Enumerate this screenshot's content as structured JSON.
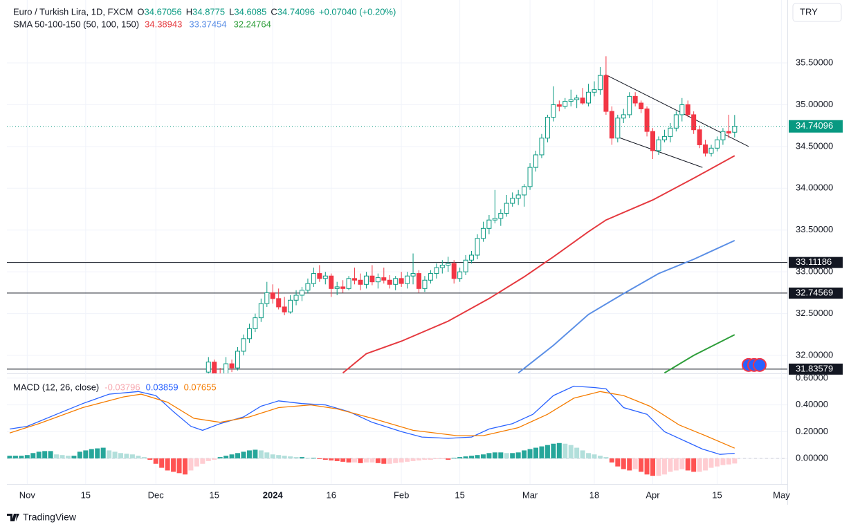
{
  "chart_data": [
    {
      "type": "candlestick",
      "title": "Euro / Turkish Lira, 1D, FXCM",
      "ohlc_labels": [
        "O",
        "H",
        "L",
        "C"
      ],
      "change": "+0.07040 (+0.20%)",
      "indicator_label": "SMA 50-100-150 (50, 100, 150)",
      "currency": "TRY",
      "colors": {
        "up": "#089981",
        "down": "#f23645",
        "level": "#131722",
        "trendline": "#131722"
      },
      "x": [
        34,
        35,
        36,
        37,
        38,
        39,
        40,
        41,
        42,
        43,
        44,
        45,
        46,
        47,
        48,
        49,
        50,
        51,
        52,
        53,
        54,
        55,
        56,
        57,
        58,
        59,
        60,
        61,
        62,
        63,
        64,
        65,
        66,
        67,
        68,
        69,
        70,
        71,
        72,
        73,
        74,
        75,
        76,
        77,
        78,
        79,
        80,
        81,
        82,
        83,
        84,
        85,
        86,
        87,
        88,
        89,
        90,
        91,
        92,
        93,
        94,
        95,
        96,
        97,
        98,
        99,
        100,
        101,
        102,
        103,
        104,
        105,
        106,
        107,
        108,
        109,
        110,
        111,
        112,
        113,
        114,
        115,
        116,
        117,
        118,
        119,
        120,
        121,
        122,
        123,
        124
      ],
      "open": [
        31.8,
        31.92,
        31.78,
        31.72,
        31.9,
        31.85,
        32.05,
        32.2,
        32.32,
        32.45,
        32.62,
        32.75,
        32.68,
        32.58,
        32.52,
        32.66,
        32.72,
        32.78,
        32.86,
        32.98,
        32.92,
        32.95,
        32.8,
        32.82,
        32.8,
        32.92,
        32.9,
        32.85,
        32.95,
        32.88,
        32.93,
        32.9,
        32.85,
        32.92,
        32.86,
        32.95,
        32.98,
        32.8,
        32.9,
        32.98,
        33.05,
        33.08,
        33.1,
        32.92,
        33.0,
        33.14,
        33.2,
        33.4,
        33.52,
        33.62,
        33.64,
        33.7,
        33.82,
        33.88,
        33.92,
        34.02,
        34.25,
        34.4,
        34.6,
        34.85,
        35.0,
        34.98,
        35.04,
        35.06,
        35.08,
        35.02,
        35.15,
        35.18,
        35.35,
        34.92,
        34.6,
        34.84,
        34.88,
        35.1,
        35.02,
        34.95,
        34.68,
        34.45,
        34.58,
        34.62,
        34.72,
        34.88,
        35.0,
        34.88,
        34.7,
        34.52,
        34.42,
        34.48,
        34.58,
        34.68,
        34.67056
      ],
      "high": [
        31.98,
        31.95,
        31.85,
        31.98,
        31.95,
        32.1,
        32.25,
        32.38,
        32.5,
        32.68,
        32.88,
        32.85,
        32.8,
        32.7,
        32.72,
        32.78,
        32.82,
        32.92,
        33.05,
        33.08,
        33.0,
        32.98,
        32.88,
        32.9,
        32.95,
        33.05,
        32.98,
        33.0,
        33.08,
        32.98,
        33.05,
        32.96,
        32.95,
        33.0,
        33.0,
        33.22,
        33.02,
        32.95,
        33.02,
        33.1,
        33.14,
        33.18,
        33.14,
        33.05,
        33.2,
        33.25,
        33.45,
        33.6,
        33.68,
        33.98,
        33.75,
        33.92,
        33.95,
        33.98,
        34.05,
        34.3,
        34.45,
        34.65,
        34.88,
        35.22,
        35.05,
        35.08,
        35.18,
        35.12,
        35.2,
        35.25,
        35.28,
        35.45,
        35.58,
        34.98,
        34.88,
        34.95,
        35.15,
        35.15,
        35.05,
        34.98,
        34.72,
        34.62,
        34.7,
        34.78,
        34.92,
        35.08,
        35.05,
        34.92,
        34.75,
        34.58,
        34.52,
        34.62,
        34.72,
        34.88,
        34.8775
      ],
      "low": [
        31.75,
        31.7,
        31.65,
        31.7,
        31.8,
        31.82,
        32.0,
        32.15,
        32.28,
        32.4,
        32.58,
        32.62,
        32.55,
        32.48,
        32.5,
        32.6,
        32.65,
        32.74,
        32.82,
        32.88,
        32.85,
        32.7,
        32.72,
        32.75,
        32.78,
        32.85,
        32.78,
        32.8,
        32.84,
        32.8,
        32.86,
        32.8,
        32.78,
        32.82,
        32.8,
        32.85,
        32.75,
        32.76,
        32.86,
        32.92,
        32.98,
        33.0,
        32.86,
        32.88,
        32.96,
        33.1,
        33.15,
        33.36,
        33.45,
        33.58,
        33.55,
        33.66,
        33.78,
        33.8,
        33.78,
        33.98,
        34.2,
        34.36,
        34.55,
        34.8,
        34.92,
        34.95,
        34.98,
        34.96,
        35.0,
        34.98,
        35.1,
        35.12,
        34.88,
        34.52,
        34.55,
        34.78,
        34.84,
        34.98,
        34.9,
        34.62,
        34.35,
        34.4,
        34.55,
        34.55,
        34.68,
        34.8,
        34.85,
        34.65,
        34.48,
        34.38,
        34.38,
        34.44,
        34.52,
        34.6,
        34.6085
      ],
      "close": [
        31.92,
        31.78,
        31.72,
        31.9,
        31.85,
        32.05,
        32.2,
        32.32,
        32.45,
        32.62,
        32.75,
        32.68,
        32.58,
        32.52,
        32.66,
        32.72,
        32.78,
        32.86,
        32.98,
        32.92,
        32.95,
        32.8,
        32.82,
        32.8,
        32.92,
        32.9,
        32.85,
        32.95,
        32.88,
        32.93,
        32.9,
        32.85,
        32.92,
        32.86,
        32.95,
        32.98,
        32.8,
        32.9,
        32.98,
        33.05,
        33.08,
        33.1,
        32.92,
        33.0,
        33.14,
        33.2,
        33.4,
        33.52,
        33.62,
        33.64,
        33.7,
        33.82,
        33.88,
        33.92,
        34.02,
        34.25,
        34.4,
        34.6,
        34.85,
        35.0,
        34.98,
        35.04,
        35.06,
        35.08,
        35.02,
        35.15,
        35.18,
        35.35,
        34.92,
        34.6,
        34.84,
        34.88,
        35.1,
        35.02,
        34.95,
        34.68,
        34.45,
        34.58,
        34.62,
        34.72,
        34.88,
        35.0,
        34.88,
        34.7,
        34.52,
        34.42,
        34.48,
        34.58,
        34.68,
        34.66,
        34.74096
      ],
      "series": [
        {
          "color": "#e5393f",
          "x": [
            57,
            61,
            67,
            75,
            82,
            88,
            93,
            99,
            102,
            110,
            117,
            124
          ],
          "values": [
            31.79,
            32.02,
            32.17,
            32.41,
            32.68,
            32.94,
            33.18,
            33.48,
            33.62,
            33.86,
            34.12,
            34.38943
          ]
        },
        {
          "color": "#5b8fe6",
          "x": [
            87,
            93,
            99,
            105,
            111,
            117,
            124
          ],
          "values": [
            31.79,
            32.12,
            32.49,
            32.74,
            32.98,
            33.15,
            33.37454
          ]
        },
        {
          "color": "#2e9e3a",
          "x": [
            112,
            117,
            124
          ],
          "values": [
            31.79,
            32.0,
            32.24764
          ]
        }
      ],
      "levels": [
        33.11186,
        32.74569,
        31.83579
      ],
      "trendlines": [
        {
          "x": [
            101.9,
            126.4
          ],
          "values": [
            35.36,
            34.5
          ]
        },
        {
          "x": [
            103.7,
            118.5
          ],
          "values": [
            34.62,
            34.25
          ]
        }
      ],
      "xlim": [
        -0.47,
        132.66
      ],
      "ylim": [
        31.785,
        36.253
      ],
      "yticks": [
        {
          "value": 35.5,
          "label": "35.50000"
        },
        {
          "value": 35,
          "label": "35.00000"
        },
        {
          "value": 34.5,
          "label": "34.50000"
        },
        {
          "value": 34,
          "label": "34.00000"
        },
        {
          "value": 33.5,
          "label": "33.50000"
        },
        {
          "value": 33,
          "label": "33.00000"
        },
        {
          "value": 32.5,
          "label": "32.50000"
        },
        {
          "value": 32,
          "label": "32.00000"
        }
      ],
      "xticks": [
        {
          "value": 3,
          "label": "Nov"
        },
        {
          "value": 13,
          "label": "15"
        },
        {
          "value": 25,
          "label": "Dec"
        },
        {
          "value": 35,
          "label": "15"
        },
        {
          "value": 45,
          "label": "2024"
        },
        {
          "value": 55,
          "label": "16"
        },
        {
          "value": 67,
          "label": "Feb"
        },
        {
          "value": 77,
          "label": "15"
        },
        {
          "value": 89,
          "label": "Mar"
        },
        {
          "value": 100,
          "label": "18"
        },
        {
          "value": 110,
          "label": "Apr"
        },
        {
          "value": 121,
          "label": "15"
        },
        {
          "value": 132,
          "label": "May"
        }
      ],
      "grid": true
    },
    {
      "type": "macd",
      "title": "MACD (12, 26, close)",
      "histogram_colors": [
        "#26a69a",
        "#b2dfdb",
        "#ff5252",
        "#ffcdd2"
      ],
      "histogram": [
        0.02,
        0.02,
        0.02,
        0.025,
        0.04,
        0.05,
        0.055,
        0.055,
        0.03,
        0.025,
        0.02,
        0.02,
        0.05,
        0.06,
        0.07,
        0.075,
        0.08,
        0.06,
        0.05,
        0.04,
        0.035,
        0.03,
        0.02,
        0.01,
        -0.01,
        -0.04,
        -0.07,
        -0.09,
        -0.1,
        -0.11,
        -0.12,
        -0.09,
        -0.06,
        -0.04,
        -0.02,
        -0.01,
        0.01,
        0.02,
        0.03,
        0.04,
        0.05,
        0.06,
        0.065,
        0.06,
        0.045,
        0.03,
        0.025,
        0.02,
        0.015,
        0.01,
        0.01,
        0.005,
        0.005,
        -0.005,
        -0.01,
        -0.015,
        -0.02,
        -0.025,
        -0.03,
        -0.03,
        -0.035,
        -0.03,
        -0.03,
        -0.035,
        -0.04,
        -0.04,
        -0.035,
        -0.03,
        -0.025,
        -0.02,
        -0.015,
        -0.01,
        -0.01,
        -0.005,
        -0.005,
        -0.01,
        0.005,
        0.01,
        0.015,
        0.02,
        0.025,
        0.03,
        0.04,
        0.045,
        0.045,
        0.04,
        0.04,
        0.045,
        0.06,
        0.07,
        0.08,
        0.09,
        0.1,
        0.11,
        0.115,
        0.11,
        0.1,
        0.08,
        0.06,
        0.04,
        0.03,
        0.02,
        0.01,
        -0.03,
        -0.06,
        -0.08,
        -0.09,
        -0.08,
        -0.1,
        -0.12,
        -0.13,
        -0.13,
        -0.12,
        -0.1,
        -0.09,
        -0.08,
        -0.09,
        -0.1,
        -0.1,
        -0.09,
        -0.07,
        -0.06,
        -0.05,
        -0.045,
        -0.03796
      ],
      "series": [
        {
          "color": "#2962ff",
          "x": [
            0,
            3,
            8,
            12.5,
            17,
            22,
            25,
            28,
            31,
            33,
            36,
            40,
            43,
            46,
            50,
            54,
            58,
            62,
            67,
            70.5,
            75,
            79,
            82,
            86,
            89.5,
            93,
            96.5,
            100,
            102,
            105,
            109,
            112,
            115.5,
            118.5,
            121.5,
            124
          ],
          "values": [
            0.22,
            0.24,
            0.33,
            0.41,
            0.48,
            0.5,
            0.47,
            0.35,
            0.24,
            0.21,
            0.26,
            0.31,
            0.39,
            0.43,
            0.41,
            0.4,
            0.35,
            0.27,
            0.2,
            0.16,
            0.15,
            0.16,
            0.22,
            0.26,
            0.33,
            0.47,
            0.54,
            0.53,
            0.52,
            0.38,
            0.33,
            0.2,
            0.13,
            0.07,
            0.03,
            0.03859
          ]
        },
        {
          "color": "#f57c00",
          "x": [
            0,
            5,
            12.5,
            19.5,
            22.5,
            27,
            31.5,
            36,
            41,
            46,
            51.5,
            56,
            62,
            69,
            76.5,
            81,
            87,
            92,
            96.5,
            101,
            105,
            109.5,
            114.5,
            119,
            124
          ],
          "values": [
            0.19,
            0.26,
            0.38,
            0.46,
            0.48,
            0.42,
            0.3,
            0.27,
            0.31,
            0.38,
            0.4,
            0.37,
            0.3,
            0.21,
            0.17,
            0.17,
            0.23,
            0.33,
            0.45,
            0.5,
            0.47,
            0.39,
            0.25,
            0.17,
            0.07655
          ]
        }
      ],
      "ylim": [
        -0.191,
        0.6305
      ],
      "yticks": [
        {
          "value": 0.6,
          "label": "0.60000"
        },
        {
          "value": 0.4,
          "label": "0.40000"
        },
        {
          "value": 0.2,
          "label": "0.20000"
        },
        {
          "value": 0,
          "label": "0.00000"
        }
      ]
    }
  ],
  "footer": "TradingView"
}
